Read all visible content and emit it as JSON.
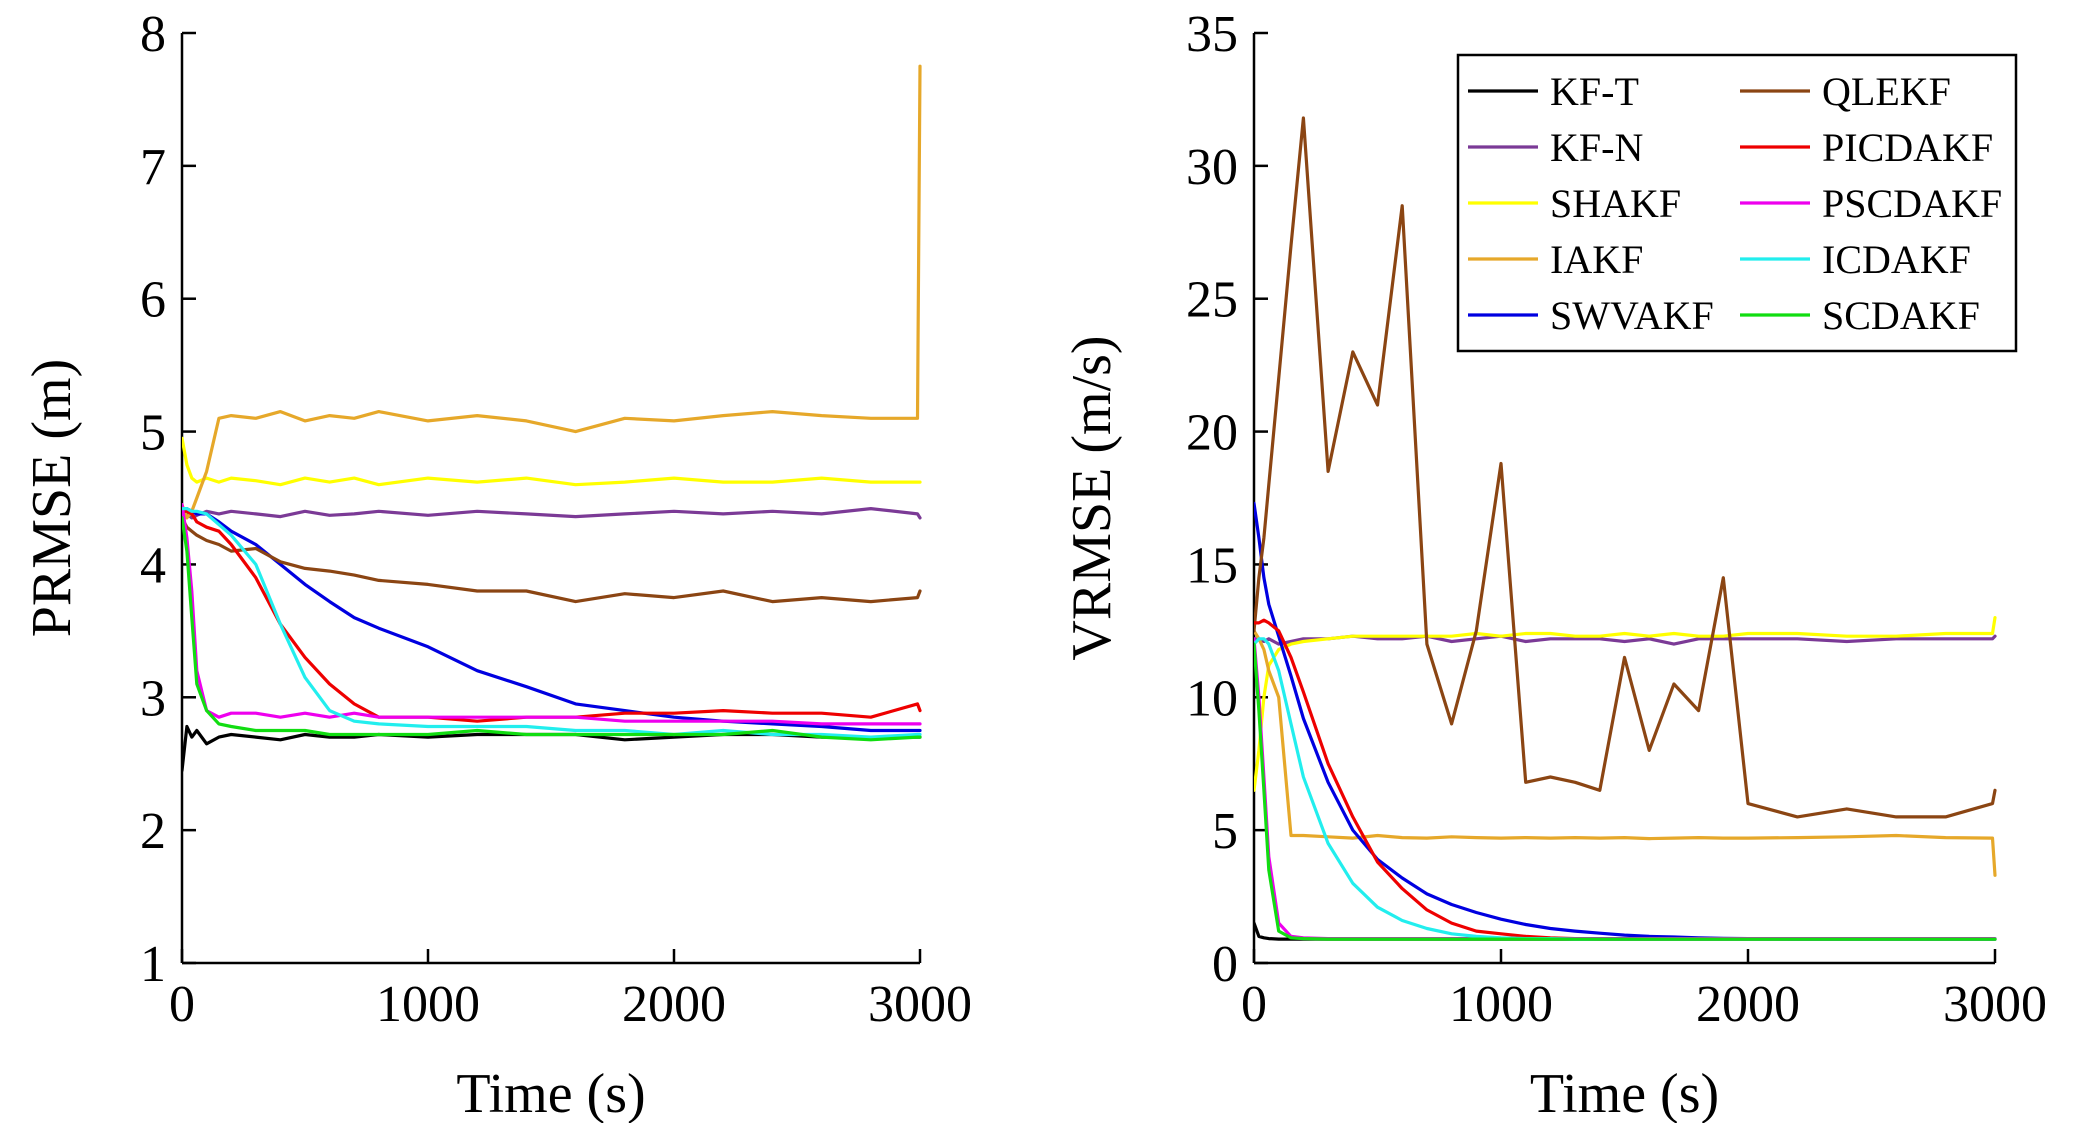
{
  "colors": {
    "KF-T": "#000000",
    "KF-N": "#7b3a96",
    "SHAKF": "#ffff00",
    "IAKF": "#e6a82a",
    "SWVAKF": "#0000e0",
    "QLEKF": "#8b4513",
    "PICDAKF": "#ee0000",
    "PSCDAKF": "#ee00ee",
    "ICDAKF": "#22eeee",
    "SCDAKF": "#11dd11"
  },
  "chart_data": [
    {
      "type": "line",
      "xlabel": "Time (s)",
      "ylabel": "PRMSE (m)",
      "xlim": [
        0,
        3000
      ],
      "ylim": [
        1,
        8
      ],
      "xticks": [
        0,
        1000,
        2000,
        3000
      ],
      "yticks": [
        1,
        2,
        3,
        4,
        5,
        6,
        7,
        8
      ],
      "grid": false,
      "legend": "none",
      "x": [
        0,
        20,
        40,
        60,
        100,
        150,
        200,
        300,
        400,
        500,
        600,
        700,
        800,
        1000,
        1200,
        1400,
        1600,
        1800,
        2000,
        2200,
        2400,
        2600,
        2800,
        2990,
        3000
      ],
      "series": [
        {
          "name": "KF-T",
          "values": [
            2.45,
            2.78,
            2.7,
            2.75,
            2.65,
            2.7,
            2.72,
            2.7,
            2.68,
            2.72,
            2.7,
            2.7,
            2.72,
            2.7,
            2.72,
            2.72,
            2.72,
            2.68,
            2.7,
            2.72,
            2.72,
            2.7,
            2.7,
            2.7,
            2.7
          ]
        },
        {
          "name": "KF-N",
          "values": [
            4.4,
            4.38,
            4.35,
            4.37,
            4.4,
            4.38,
            4.4,
            4.38,
            4.36,
            4.4,
            4.37,
            4.38,
            4.4,
            4.37,
            4.4,
            4.38,
            4.36,
            4.38,
            4.4,
            4.38,
            4.4,
            4.38,
            4.42,
            4.38,
            4.35
          ]
        },
        {
          "name": "SHAKF",
          "values": [
            4.95,
            4.75,
            4.65,
            4.62,
            4.65,
            4.62,
            4.65,
            4.63,
            4.6,
            4.65,
            4.62,
            4.65,
            4.6,
            4.65,
            4.62,
            4.65,
            4.6,
            4.62,
            4.65,
            4.62,
            4.62,
            4.65,
            4.62,
            4.62,
            4.62
          ]
        },
        {
          "name": "IAKF",
          "values": [
            4.45,
            4.35,
            4.4,
            4.5,
            4.7,
            5.1,
            5.12,
            5.1,
            5.15,
            5.08,
            5.12,
            5.1,
            5.15,
            5.08,
            5.12,
            5.08,
            5.0,
            5.1,
            5.08,
            5.12,
            5.15,
            5.12,
            5.1,
            5.1,
            7.75
          ]
        },
        {
          "name": "SWVAKF",
          "values": [
            4.42,
            4.42,
            4.4,
            4.38,
            4.38,
            4.32,
            4.25,
            4.15,
            4.0,
            3.85,
            3.72,
            3.6,
            3.52,
            3.38,
            3.2,
            3.08,
            2.95,
            2.9,
            2.85,
            2.82,
            2.8,
            2.78,
            2.75,
            2.75,
            2.75
          ]
        },
        {
          "name": "QLEKF",
          "values": [
            4.35,
            4.28,
            4.25,
            4.22,
            4.18,
            4.15,
            4.1,
            4.12,
            4.02,
            3.97,
            3.95,
            3.92,
            3.88,
            3.85,
            3.8,
            3.8,
            3.72,
            3.78,
            3.75,
            3.8,
            3.72,
            3.75,
            3.72,
            3.75,
            3.8
          ]
        },
        {
          "name": "PICDAKF",
          "values": [
            4.4,
            4.4,
            4.38,
            4.32,
            4.28,
            4.25,
            4.15,
            3.9,
            3.55,
            3.3,
            3.1,
            2.95,
            2.85,
            2.85,
            2.82,
            2.85,
            2.85,
            2.88,
            2.88,
            2.9,
            2.88,
            2.88,
            2.85,
            2.95,
            2.9
          ]
        },
        {
          "name": "PSCDAKF",
          "values": [
            4.45,
            4.2,
            3.8,
            3.2,
            2.9,
            2.85,
            2.88,
            2.88,
            2.85,
            2.88,
            2.85,
            2.88,
            2.85,
            2.85,
            2.85,
            2.85,
            2.85,
            2.82,
            2.82,
            2.82,
            2.82,
            2.8,
            2.8,
            2.8,
            2.8
          ]
        },
        {
          "name": "ICDAKF",
          "values": [
            4.42,
            4.42,
            4.4,
            4.4,
            4.38,
            4.3,
            4.22,
            4.0,
            3.55,
            3.15,
            2.9,
            2.82,
            2.8,
            2.78,
            2.78,
            2.78,
            2.75,
            2.75,
            2.72,
            2.75,
            2.72,
            2.72,
            2.7,
            2.72,
            2.72
          ]
        },
        {
          "name": "SCDAKF",
          "values": [
            4.35,
            4.1,
            3.6,
            3.1,
            2.9,
            2.8,
            2.78,
            2.75,
            2.75,
            2.75,
            2.72,
            2.72,
            2.72,
            2.72,
            2.75,
            2.72,
            2.72,
            2.72,
            2.72,
            2.72,
            2.75,
            2.7,
            2.68,
            2.7,
            2.7
          ]
        }
      ]
    },
    {
      "type": "line",
      "xlabel": "Time (s)",
      "ylabel": "VRMSE (m/s)",
      "xlim": [
        0,
        3000
      ],
      "ylim": [
        0,
        35
      ],
      "xticks": [
        0,
        1000,
        2000,
        3000
      ],
      "yticks": [
        0,
        5,
        10,
        15,
        20,
        25,
        30,
        35
      ],
      "grid": false,
      "legend": "top-right",
      "x": [
        0,
        20,
        40,
        60,
        100,
        150,
        200,
        300,
        400,
        500,
        600,
        700,
        800,
        900,
        1000,
        1100,
        1200,
        1300,
        1400,
        1500,
        1600,
        1700,
        1800,
        1900,
        2000,
        2200,
        2400,
        2600,
        2800,
        2990,
        3000
      ],
      "series": [
        {
          "name": "KF-T",
          "values": [
            1.5,
            1.0,
            0.95,
            0.92,
            0.9,
            0.9,
            0.9,
            0.9,
            0.9,
            0.9,
            0.9,
            0.9,
            0.9,
            0.9,
            0.9,
            0.9,
            0.9,
            0.9,
            0.9,
            0.9,
            0.9,
            0.9,
            0.9,
            0.9,
            0.9,
            0.9,
            0.9,
            0.9,
            0.9,
            0.9,
            0.9
          ]
        },
        {
          "name": "KF-N",
          "values": [
            12.2,
            12.2,
            12.1,
            12.2,
            12.0,
            12.1,
            12.2,
            12.2,
            12.3,
            12.2,
            12.2,
            12.3,
            12.1,
            12.2,
            12.3,
            12.1,
            12.2,
            12.2,
            12.2,
            12.1,
            12.2,
            12.0,
            12.2,
            12.2,
            12.2,
            12.2,
            12.1,
            12.2,
            12.2,
            12.2,
            12.3
          ]
        },
        {
          "name": "SHAKF",
          "values": [
            6.5,
            8.0,
            10.0,
            11.2,
            11.8,
            12.0,
            12.1,
            12.2,
            12.3,
            12.3,
            12.3,
            12.3,
            12.3,
            12.4,
            12.3,
            12.4,
            12.4,
            12.3,
            12.3,
            12.4,
            12.3,
            12.4,
            12.3,
            12.3,
            12.4,
            12.4,
            12.3,
            12.3,
            12.4,
            12.4,
            13.0
          ]
        },
        {
          "name": "IAKF",
          "values": [
            12.5,
            12.2,
            11.8,
            11.0,
            10.0,
            4.8,
            4.8,
            4.75,
            4.7,
            4.8,
            4.72,
            4.7,
            4.75,
            4.72,
            4.7,
            4.72,
            4.7,
            4.72,
            4.7,
            4.72,
            4.68,
            4.7,
            4.72,
            4.7,
            4.7,
            4.72,
            4.75,
            4.8,
            4.72,
            4.7,
            3.3
          ]
        },
        {
          "name": "SWVAKF",
          "values": [
            17.3,
            16.0,
            14.5,
            13.5,
            12.3,
            10.8,
            9.2,
            6.8,
            5.0,
            3.9,
            3.2,
            2.6,
            2.2,
            1.9,
            1.65,
            1.45,
            1.3,
            1.2,
            1.12,
            1.05,
            1.0,
            0.98,
            0.95,
            0.93,
            0.92,
            0.9,
            0.9,
            0.9,
            0.9,
            0.9,
            0.9
          ]
        },
        {
          "name": "QLEKF",
          "values": [
            12.5,
            14.5,
            16.0,
            18.0,
            22.0,
            27.0,
            31.8,
            18.5,
            23.0,
            21.0,
            28.5,
            12.0,
            9.0,
            12.5,
            18.8,
            6.8,
            7.0,
            6.8,
            6.5,
            11.5,
            8.0,
            10.5,
            9.5,
            14.5,
            6.0,
            5.5,
            5.8,
            5.5,
            5.5,
            6.0,
            6.5
          ]
        },
        {
          "name": "PICDAKF",
          "values": [
            12.8,
            12.8,
            12.9,
            12.8,
            12.5,
            11.5,
            10.2,
            7.5,
            5.5,
            3.8,
            2.8,
            2.0,
            1.5,
            1.2,
            1.1,
            1.0,
            0.95,
            0.92,
            0.9,
            0.9,
            0.9,
            0.9,
            0.9,
            0.9,
            0.9,
            0.9,
            0.9,
            0.9,
            0.9,
            0.9,
            0.9
          ]
        },
        {
          "name": "PSCDAKF",
          "values": [
            12.2,
            10.0,
            7.0,
            4.0,
            1.5,
            1.0,
            0.95,
            0.92,
            0.92,
            0.92,
            0.92,
            0.92,
            0.92,
            0.92,
            0.92,
            0.92,
            0.92,
            0.92,
            0.92,
            0.92,
            0.92,
            0.92,
            0.92,
            0.92,
            0.92,
            0.92,
            0.92,
            0.92,
            0.92,
            0.92,
            0.92
          ]
        },
        {
          "name": "ICDAKF",
          "values": [
            12.0,
            12.2,
            12.2,
            12.0,
            11.0,
            9.0,
            7.0,
            4.5,
            3.0,
            2.1,
            1.6,
            1.3,
            1.1,
            1.0,
            0.95,
            0.92,
            0.92,
            0.9,
            0.9,
            0.9,
            0.9,
            0.9,
            0.9,
            0.9,
            0.9,
            0.9,
            0.9,
            0.9,
            0.9,
            0.9,
            0.9
          ]
        },
        {
          "name": "SCDAKF",
          "values": [
            12.0,
            9.5,
            6.5,
            3.5,
            1.2,
            0.95,
            0.92,
            0.9,
            0.9,
            0.9,
            0.9,
            0.9,
            0.9,
            0.9,
            0.9,
            0.9,
            0.9,
            0.9,
            0.9,
            0.9,
            0.9,
            0.9,
            0.9,
            0.9,
            0.9,
            0.9,
            0.9,
            0.9,
            0.9,
            0.9,
            0.9
          ]
        }
      ]
    }
  ]
}
